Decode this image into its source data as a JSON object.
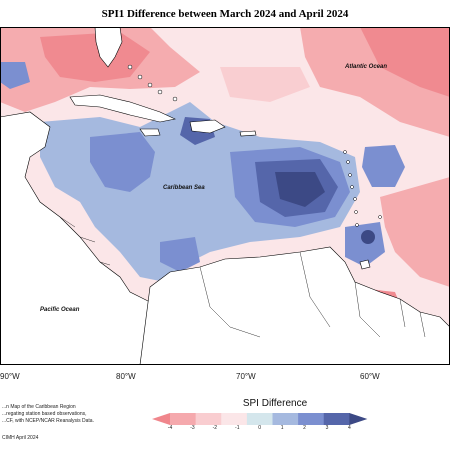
{
  "title": "SPI1 Difference between March 2024 and April 2024",
  "map": {
    "places": {
      "atlantic": "Atlantic Ocean",
      "caribbean": "Caribbean Sea",
      "pacific": "Pacific Ocean"
    },
    "lon_labels": [
      "90°W",
      "80°W",
      "70°W",
      "60°W"
    ]
  },
  "notes": {
    "line1": "...n Map of the Caribbean Region",
    "line2": "...regating station based observations,",
    "line3": "...CF, with NCEP/NCAR Reanalysis Data.",
    "credit": "CIMH April 2024"
  },
  "legend": {
    "title": "SPI Difference",
    "ticks": [
      "-4",
      "-3",
      "-2",
      "-1",
      "0",
      "1",
      "2",
      "3",
      "4"
    ],
    "colors": [
      "#f0868c",
      "#f5a9ad",
      "#f9cdd0",
      "#fbe6e8",
      "#d4e6ec",
      "#a5b9df",
      "#7b8fd0",
      "#5566aa",
      "#3c4985"
    ]
  },
  "colors": {
    "land": "#ffffff",
    "coast": "#000000",
    "dry_strong": "#f0868c",
    "dry_mild": "#f9cdd0",
    "wet_mild": "#a5b9df",
    "wet_strong": "#3c4985"
  }
}
